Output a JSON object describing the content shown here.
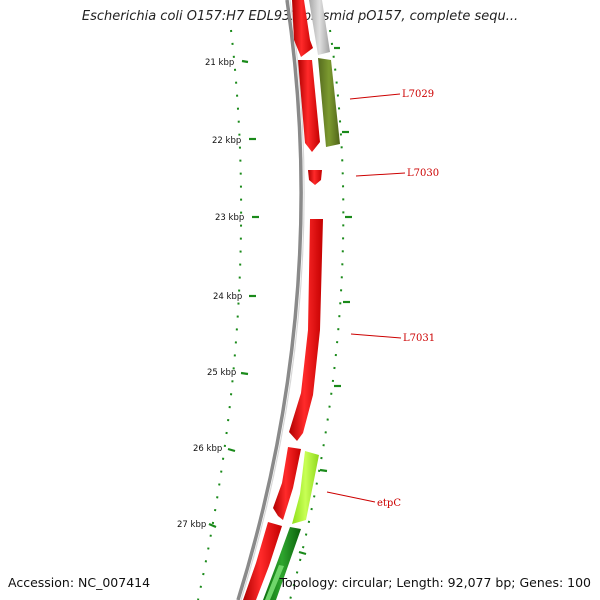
{
  "title": "Escherichia coli O157:H7 EDL933 plasmid pO157, complete sequ...",
  "footer": {
    "accession": "Accession: NC_007414",
    "summary": "Topology: circular; Length: 92,077 bp; Genes: 100"
  },
  "ticks": [
    "21 kbp",
    "22 kbp",
    "23 kbp",
    "24 kbp",
    "25 kbp",
    "26 kbp",
    "27 kbp"
  ],
  "gene_labels": [
    "L7029",
    "L7030",
    "L7031",
    "etpC"
  ],
  "colors": {
    "forward_cds": "#ee0000",
    "reverse_cds_dark": "#6b8e23",
    "reverse_cds_light": "#adff2f",
    "reverse_cds_green": "#228b22",
    "backbone": "#8a8a8a",
    "gc_skew": "#1a8a1a",
    "label": "#cc0000"
  }
}
